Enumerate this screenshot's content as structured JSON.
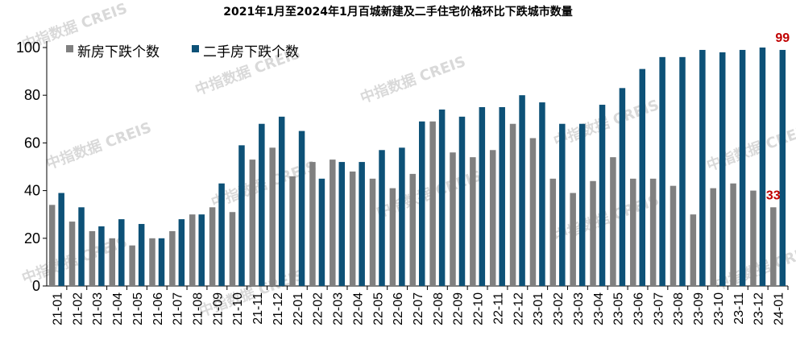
{
  "chart_data": {
    "type": "bar",
    "title": "2021年1月至2024年1月百城新建及二手住宅价格环比下跌城市数量",
    "watermark": "中指数据 CREIS",
    "categories": [
      "21-01",
      "21-02",
      "21-03",
      "21-04",
      "21-05",
      "21-06",
      "21-07",
      "21-08",
      "21-09",
      "21-10",
      "21-11",
      "21-12",
      "22-01",
      "22-02",
      "22-03",
      "22-04",
      "22-05",
      "22-06",
      "22-07",
      "22-08",
      "22-09",
      "22-10",
      "22-11",
      "22-12",
      "23-01",
      "23-02",
      "23-03",
      "23-04",
      "23-05",
      "23-06",
      "23-07",
      "23-08",
      "23-09",
      "23-10",
      "23-11",
      "23-12",
      "24-01"
    ],
    "series": [
      {
        "name": "新房下跌个数",
        "color": "#808080",
        "values": [
          34,
          27,
          23,
          20,
          17,
          20,
          23,
          30,
          33,
          31,
          53,
          58,
          46,
          52,
          53,
          48,
          45,
          41,
          47,
          69,
          56,
          54,
          57,
          68,
          62,
          45,
          39,
          44,
          54,
          45,
          45,
          42,
          30,
          41,
          43,
          40,
          33
        ]
      },
      {
        "name": "二手房下跌个数",
        "color": "#0d5177",
        "values": [
          39,
          33,
          25,
          28,
          26,
          20,
          28,
          30,
          43,
          59,
          68,
          71,
          65,
          45,
          52,
          52,
          57,
          58,
          69,
          74,
          71,
          75,
          75,
          80,
          77,
          68,
          68,
          76,
          83,
          91,
          96,
          96,
          99,
          98,
          99,
          100,
          99
        ]
      }
    ],
    "ylim": [
      0,
      100
    ],
    "yticks": [
      0,
      20,
      40,
      60,
      80,
      100
    ],
    "annotations": [
      {
        "series": 1,
        "index": 36,
        "text": "99",
        "color": "#c00000"
      },
      {
        "series": 0,
        "index": 36,
        "text": "33",
        "color": "#c00000"
      }
    ],
    "legend_position": "top-left"
  }
}
